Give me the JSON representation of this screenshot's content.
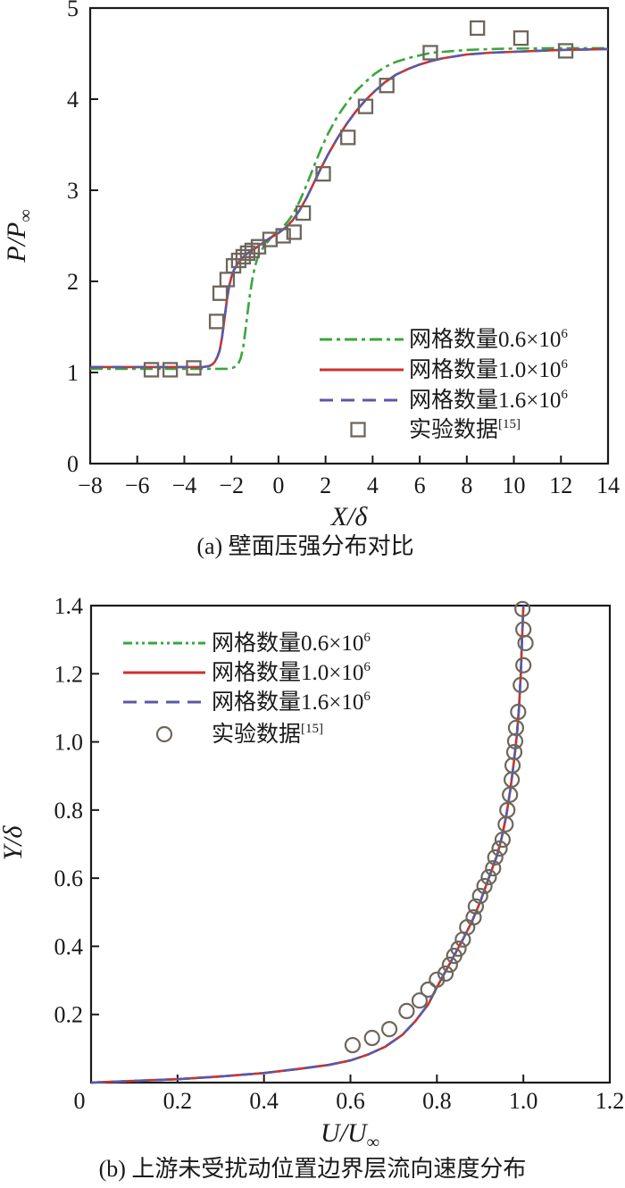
{
  "page": {
    "background": "#ffffff"
  },
  "colors": {
    "axis": "#1a1a1a",
    "grid_0_6M": "#3aa63c",
    "grid_1_0M": "#cb3231",
    "grid_1_6M": "#5b58a8",
    "experiment_marker": "#6e665c"
  },
  "chart_data": [
    {
      "id": "a",
      "type": "line",
      "caption": "(a) 壁面压强分布对比",
      "xlabel": {
        "base": "X/δ",
        "sub": ""
      },
      "ylabel": {
        "base": "P/P",
        "sub": "∞"
      },
      "xlim": [
        -8,
        14
      ],
      "ylim": [
        0,
        5
      ],
      "grid": false,
      "legend_position": "inside-lower-right",
      "xticks": {
        "values": [
          -8,
          -6,
          -4,
          -2,
          0,
          2,
          4,
          6,
          8,
          10,
          12,
          14
        ],
        "labels": [
          "−8",
          "−6",
          "−4",
          "−2",
          "0",
          "2",
          "4",
          "6",
          "8",
          "10",
          "12",
          "14"
        ]
      },
      "yticks": {
        "values": [
          0,
          1,
          2,
          3,
          4,
          5
        ],
        "labels": [
          "0",
          "1",
          "2",
          "3",
          "4",
          "5"
        ]
      },
      "series": [
        {
          "name": "grid-0.6M",
          "kind": "line",
          "legend_label": "网格数量0.6×10",
          "legend_sup": "6",
          "color": "#3aa63c",
          "line_style": "dash-dot",
          "x": [
            -8,
            -3,
            -2.2,
            -1.95,
            -1.8,
            -1.7,
            -1.6,
            -1.5,
            -1.4,
            -1.3,
            -1.2,
            -1.1,
            -1.0,
            -0.9,
            -0.8,
            -0.65,
            -0.5,
            -0.35,
            -0.2,
            0,
            0.2,
            0.4,
            0.6,
            0.9,
            1.2,
            1.5,
            1.8,
            2.1,
            2.5,
            2.9,
            3.3,
            3.7,
            4.1,
            4.5,
            5.0,
            5.5,
            6.0,
            6.5,
            7.0,
            8.0,
            9.0,
            10,
            12,
            14
          ],
          "y": [
            1.04,
            1.04,
            1.04,
            1.05,
            1.07,
            1.1,
            1.16,
            1.28,
            1.47,
            1.68,
            1.88,
            2.04,
            2.16,
            2.25,
            2.31,
            2.37,
            2.42,
            2.47,
            2.51,
            2.55,
            2.6,
            2.66,
            2.73,
            2.88,
            3.06,
            3.26,
            3.45,
            3.62,
            3.81,
            3.96,
            4.09,
            4.19,
            4.28,
            4.35,
            4.41,
            4.45,
            4.48,
            4.51,
            4.52,
            4.54,
            4.55,
            4.555,
            4.56,
            4.56
          ]
        },
        {
          "name": "grid-1.0M",
          "kind": "line",
          "legend_label": "网格数量1.0×10",
          "legend_sup": "6",
          "color": "#cb3231",
          "line_style": "solid",
          "x": [
            -8,
            -4,
            -3.2,
            -2.95,
            -2.8,
            -2.7,
            -2.6,
            -2.5,
            -2.4,
            -2.3,
            -2.2,
            -2.1,
            -2.0,
            -1.9,
            -1.75,
            -1.6,
            -1.4,
            -1.2,
            -1.0,
            -0.8,
            -0.6,
            -0.4,
            -0.2,
            0,
            0.3,
            0.6,
            0.9,
            1.2,
            1.5,
            1.8,
            2.1,
            2.5,
            2.9,
            3.3,
            3.7,
            4.1,
            4.5,
            5.0,
            5.5,
            6.0,
            6.5,
            7.0,
            8.0,
            9.0,
            10,
            11,
            12,
            13,
            14
          ],
          "y": [
            1.06,
            1.06,
            1.06,
            1.07,
            1.09,
            1.12,
            1.17,
            1.24,
            1.38,
            1.58,
            1.78,
            1.94,
            2.05,
            2.12,
            2.19,
            2.24,
            2.29,
            2.33,
            2.36,
            2.4,
            2.43,
            2.47,
            2.5,
            2.53,
            2.59,
            2.67,
            2.78,
            2.92,
            3.08,
            3.24,
            3.39,
            3.57,
            3.73,
            3.87,
            3.99,
            4.09,
            4.18,
            4.27,
            4.33,
            4.38,
            4.42,
            4.45,
            4.49,
            4.51,
            4.52,
            4.53,
            4.54,
            4.545,
            4.55
          ]
        },
        {
          "name": "grid-1.6M",
          "kind": "line",
          "legend_label": "网格数量1.6×10",
          "legend_sup": "6",
          "color": "#5b58a8",
          "line_style": "dashed",
          "x": [
            -8,
            -4,
            -3.2,
            -2.95,
            -2.8,
            -2.7,
            -2.6,
            -2.5,
            -2.4,
            -2.3,
            -2.2,
            -2.1,
            -2.0,
            -1.9,
            -1.75,
            -1.6,
            -1.4,
            -1.2,
            -1.0,
            -0.8,
            -0.6,
            -0.4,
            -0.2,
            0,
            0.3,
            0.6,
            0.9,
            1.2,
            1.5,
            1.8,
            2.1,
            2.5,
            2.9,
            3.3,
            3.7,
            4.1,
            4.5,
            5.0,
            5.5,
            6.0,
            6.5,
            7.0,
            8.0,
            9.0,
            10,
            11,
            12,
            13,
            14
          ],
          "y": [
            1.06,
            1.06,
            1.06,
            1.07,
            1.09,
            1.12,
            1.17,
            1.24,
            1.38,
            1.58,
            1.78,
            1.94,
            2.05,
            2.12,
            2.19,
            2.24,
            2.29,
            2.33,
            2.36,
            2.4,
            2.43,
            2.47,
            2.5,
            2.53,
            2.59,
            2.67,
            2.78,
            2.92,
            3.08,
            3.24,
            3.39,
            3.57,
            3.73,
            3.87,
            3.99,
            4.09,
            4.18,
            4.27,
            4.33,
            4.38,
            4.42,
            4.45,
            4.49,
            4.51,
            4.52,
            4.53,
            4.54,
            4.545,
            4.55
          ]
        },
        {
          "name": "experiment",
          "kind": "scatter",
          "legend_label": "实验数据",
          "legend_sup": "[15]",
          "color": "#6e665c",
          "marker": "square",
          "x": [
            -5.4,
            -4.6,
            -3.6,
            -2.63,
            -2.48,
            -2.18,
            -1.91,
            -1.69,
            -1.5,
            -1.31,
            -1.12,
            -0.85,
            -0.36,
            0.2,
            0.66,
            1.05,
            1.9,
            2.95,
            3.7,
            4.6,
            6.45,
            8.45,
            10.3,
            12.2
          ],
          "y": [
            1.03,
            1.03,
            1.05,
            1.56,
            1.87,
            2.02,
            2.17,
            2.23,
            2.27,
            2.31,
            2.34,
            2.38,
            2.46,
            2.5,
            2.54,
            2.75,
            3.18,
            3.58,
            3.92,
            4.15,
            4.51,
            4.78,
            4.67,
            4.53
          ]
        }
      ]
    },
    {
      "id": "b",
      "type": "line",
      "caption": "(b) 上游未受扰动位置边界层流向速度分布",
      "xlabel": {
        "base": "U/U",
        "sub": "∞"
      },
      "ylabel": {
        "base": "Y/δ",
        "sub": ""
      },
      "xlim": [
        0,
        1.2
      ],
      "ylim": [
        0,
        1.4
      ],
      "grid": false,
      "legend_position": "inside-upper-left",
      "xticks": {
        "values": [
          0,
          0.2,
          0.4,
          0.6,
          0.8,
          1.0,
          1.2
        ],
        "labels": [
          "0",
          "0.2",
          "0.4",
          "0.6",
          "0.8",
          "1.0",
          "1.2"
        ]
      },
      "yticks": {
        "values": [
          0.2,
          0.4,
          0.6,
          0.8,
          1.0,
          1.2,
          1.4
        ],
        "labels": [
          "0.2",
          "0.4",
          "0.6",
          "0.8",
          "1.0",
          "1.2",
          "1.4"
        ]
      },
      "series": [
        {
          "name": "grid-0.6M",
          "kind": "line",
          "legend_label": "网格数量0.6×10",
          "legend_sup": "6",
          "color": "#3aa63c",
          "line_style": "dash-dot-dot",
          "x": [
            0,
            0.1,
            0.2,
            0.3,
            0.4,
            0.48,
            0.55,
            0.6,
            0.64,
            0.68,
            0.72,
            0.75,
            0.78,
            0.8,
            0.83,
            0.86,
            0.88,
            0.9,
            0.92,
            0.94,
            0.95,
            0.96,
            0.97,
            0.978,
            0.985,
            0.99,
            0.994,
            0.997,
            1.0
          ],
          "y": [
            0,
            0.005,
            0.01,
            0.018,
            0.028,
            0.04,
            0.052,
            0.065,
            0.082,
            0.105,
            0.14,
            0.18,
            0.23,
            0.28,
            0.35,
            0.42,
            0.47,
            0.53,
            0.6,
            0.67,
            0.72,
            0.78,
            0.86,
            0.94,
            1.02,
            1.1,
            1.2,
            1.3,
            1.4
          ]
        },
        {
          "name": "grid-1.0M",
          "kind": "line",
          "legend_label": "网格数量1.0×10",
          "legend_sup": "6",
          "color": "#cb3231",
          "line_style": "solid",
          "x": [
            0,
            0.1,
            0.2,
            0.3,
            0.4,
            0.48,
            0.55,
            0.6,
            0.64,
            0.68,
            0.72,
            0.75,
            0.78,
            0.8,
            0.83,
            0.86,
            0.88,
            0.9,
            0.92,
            0.94,
            0.95,
            0.96,
            0.97,
            0.978,
            0.985,
            0.99,
            0.994,
            0.997,
            1.0
          ],
          "y": [
            0,
            0.005,
            0.01,
            0.018,
            0.028,
            0.04,
            0.052,
            0.065,
            0.082,
            0.105,
            0.14,
            0.18,
            0.23,
            0.28,
            0.35,
            0.42,
            0.47,
            0.53,
            0.6,
            0.67,
            0.72,
            0.78,
            0.86,
            0.94,
            1.02,
            1.1,
            1.2,
            1.3,
            1.4
          ]
        },
        {
          "name": "grid-1.6M",
          "kind": "line",
          "legend_label": "网格数量1.6×10",
          "legend_sup": "6",
          "color": "#5b58a8",
          "line_style": "dashed",
          "x": [
            0,
            0.1,
            0.2,
            0.3,
            0.4,
            0.48,
            0.55,
            0.6,
            0.64,
            0.68,
            0.72,
            0.75,
            0.78,
            0.8,
            0.83,
            0.86,
            0.88,
            0.9,
            0.92,
            0.94,
            0.95,
            0.96,
            0.97,
            0.978,
            0.985,
            0.99,
            0.994,
            0.997,
            1.0
          ],
          "y": [
            0,
            0.005,
            0.01,
            0.018,
            0.028,
            0.04,
            0.052,
            0.065,
            0.082,
            0.105,
            0.14,
            0.18,
            0.23,
            0.28,
            0.35,
            0.42,
            0.47,
            0.53,
            0.6,
            0.67,
            0.72,
            0.78,
            0.86,
            0.94,
            1.02,
            1.1,
            1.2,
            1.3,
            1.4
          ]
        },
        {
          "name": "experiment",
          "kind": "scatter",
          "legend_label": "实验数据",
          "legend_sup": "[15]",
          "color": "#6e665c",
          "marker": "circle",
          "x": [
            0.605,
            0.65,
            0.69,
            0.73,
            0.76,
            0.78,
            0.8,
            0.82,
            0.83,
            0.84,
            0.85,
            0.86,
            0.87,
            0.885,
            0.89,
            0.9,
            0.91,
            0.92,
            0.93,
            0.935,
            0.945,
            0.952,
            0.959,
            0.963,
            0.969,
            0.973,
            0.975,
            0.979,
            0.981,
            0.983,
            0.988,
            0.994,
            1.0,
            1.005,
            1.0,
            0.998
          ],
          "y": [
            0.11,
            0.131,
            0.157,
            0.21,
            0.241,
            0.273,
            0.302,
            0.32,
            0.346,
            0.372,
            0.393,
            0.42,
            0.456,
            0.485,
            0.517,
            0.548,
            0.577,
            0.603,
            0.629,
            0.661,
            0.687,
            0.713,
            0.758,
            0.8,
            0.845,
            0.889,
            0.931,
            0.97,
            1.002,
            1.041,
            1.088,
            1.167,
            1.225,
            1.29,
            1.33,
            1.39
          ]
        }
      ]
    }
  ]
}
